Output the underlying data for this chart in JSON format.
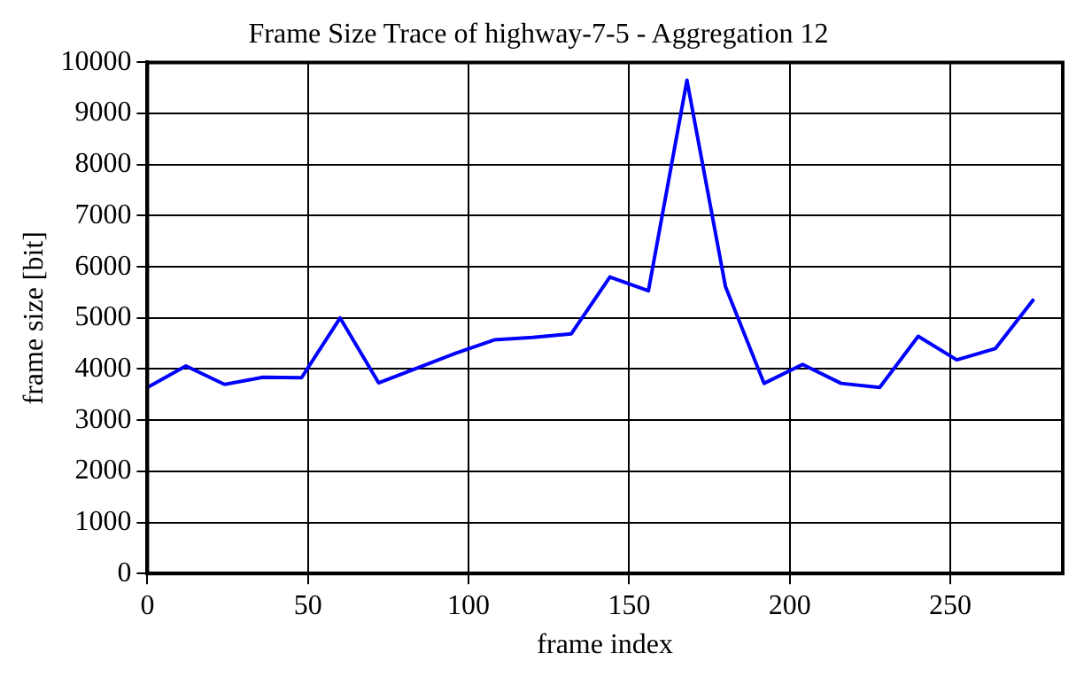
{
  "chart_data": {
    "type": "line",
    "title": "Frame Size Trace of highway-7-5 - Aggregation 12",
    "xlabel": "frame index",
    "ylabel": "frame size [bit]",
    "x": [
      0,
      12,
      24,
      36,
      48,
      60,
      72,
      84,
      96,
      108,
      120,
      132,
      144,
      156,
      168,
      180,
      192,
      204,
      216,
      228,
      240,
      252,
      264,
      276
    ],
    "series": [
      {
        "color": "#0000ff",
        "values": [
          3640,
          4060,
          3700,
          3840,
          3830,
          5000,
          3730,
          4020,
          4310,
          4570,
          4620,
          4690,
          5800,
          5530,
          9650,
          5610,
          3720,
          4090,
          3720,
          3640,
          4640,
          4180,
          4400,
          5370
        ]
      }
    ],
    "xlim": [
      0,
      285
    ],
    "xticks": [
      0,
      50,
      100,
      150,
      200,
      250
    ],
    "ylim": [
      0,
      10000
    ],
    "yticks": [
      0,
      1000,
      2000,
      3000,
      4000,
      5000,
      6000,
      7000,
      8000,
      9000,
      10000
    ],
    "grid": true,
    "legend": false,
    "marker": "none",
    "line_style": "solid"
  }
}
